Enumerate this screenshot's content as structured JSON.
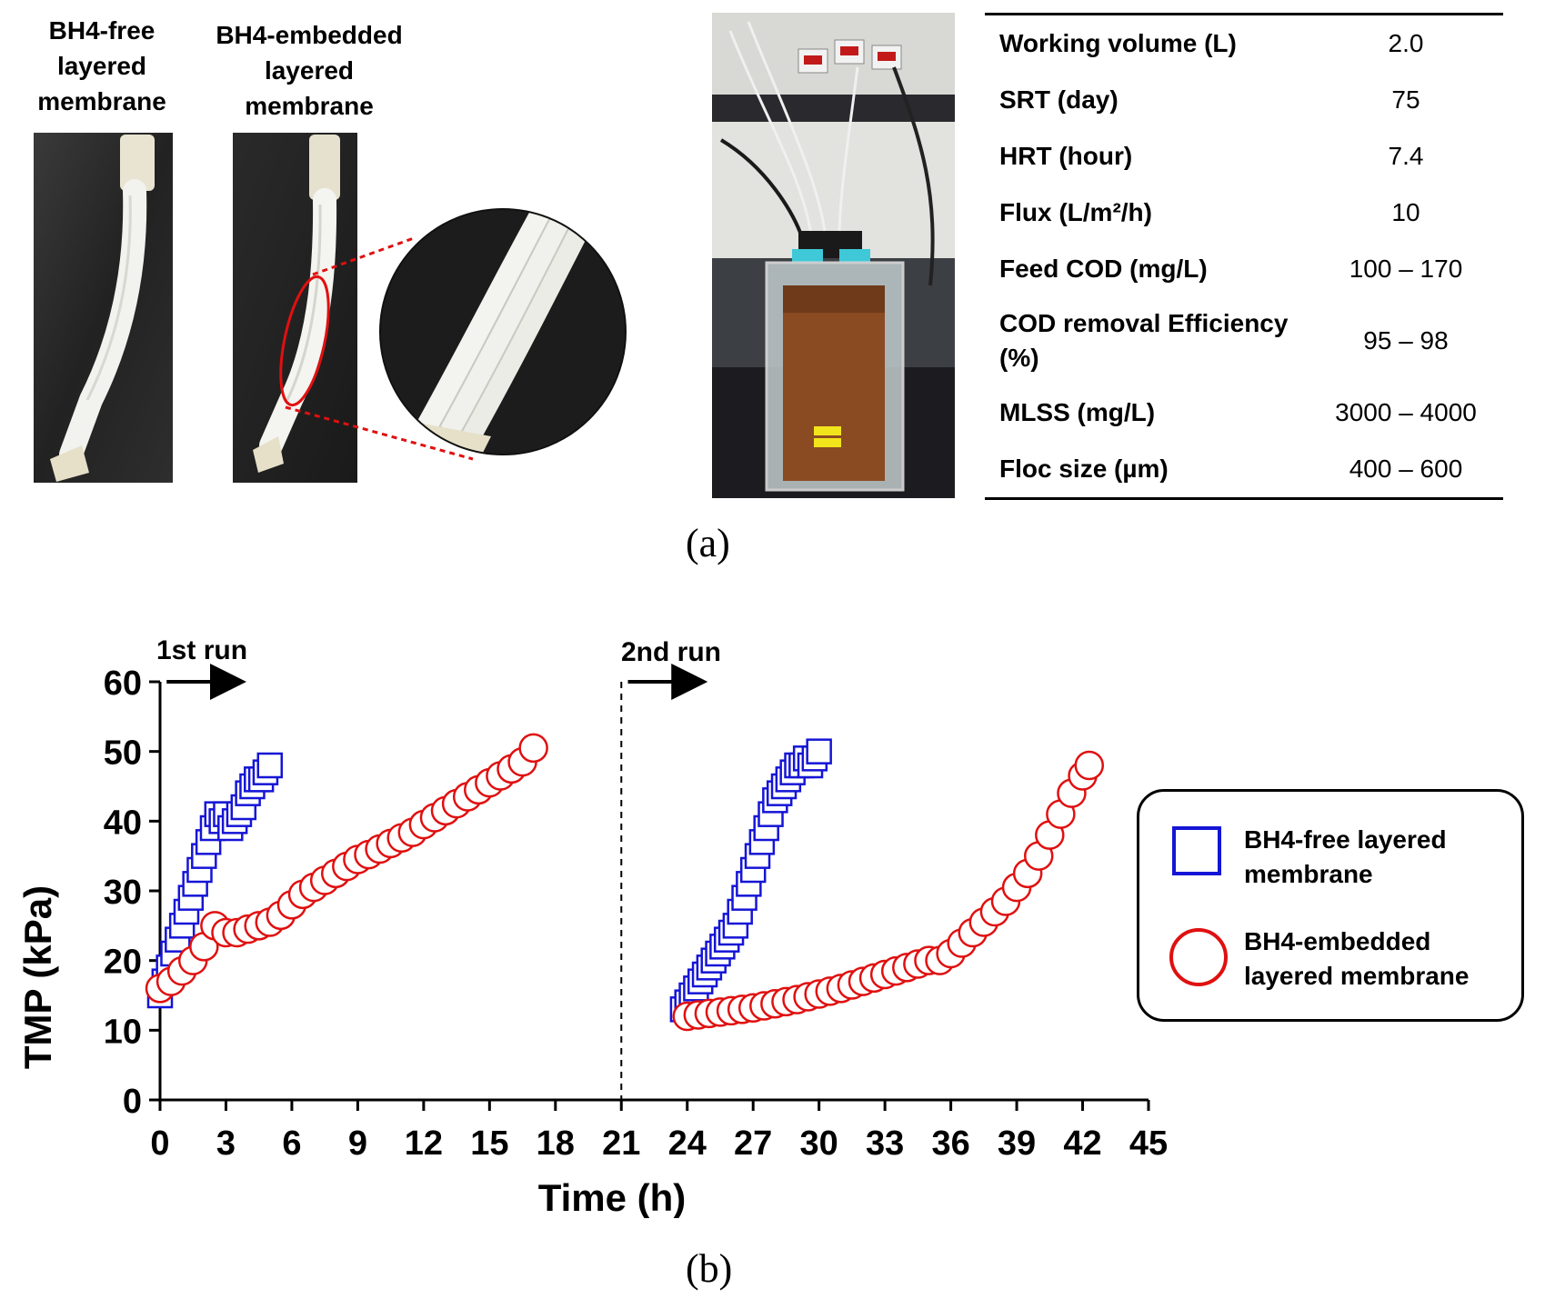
{
  "panel_a": {
    "label": "(a)",
    "photo_labels": {
      "free": [
        "BH4-free",
        "layered",
        "membrane"
      ],
      "embedded": [
        "BH4-embedded",
        "layered",
        "membrane"
      ]
    },
    "properties": [
      {
        "name": "Working volume (L)",
        "value": "2.0"
      },
      {
        "name": "SRT (day)",
        "value": "75"
      },
      {
        "name": "HRT (hour)",
        "value": "7.4"
      },
      {
        "name": "Flux (L/m²/h)",
        "value": "10"
      },
      {
        "name": "Feed COD (mg/L)",
        "value": "100 – 170"
      },
      {
        "name": "COD removal Efficiency (%)",
        "value": "95 – 98"
      },
      {
        "name": "MLSS (mg/L)",
        "value": "3000 – 4000"
      },
      {
        "name": "Floc size (µm)",
        "value": "400 – 600"
      }
    ]
  },
  "panel_b": {
    "label": "(b)",
    "run_labels": [
      "1st run",
      "2nd run"
    ],
    "legend": [
      "BH4-free layered membrane",
      "BH4-embedded layered membrane"
    ]
  },
  "colors": {
    "free": "#1515d6",
    "embedded": "#e01010"
  },
  "chart_data": {
    "type": "scatter",
    "xlabel": "Time (h)",
    "ylabel": "TMP (kPa)",
    "xlim": [
      0,
      45
    ],
    "ylim": [
      0,
      60
    ],
    "xticks": [
      0,
      3,
      6,
      9,
      12,
      15,
      18,
      21,
      24,
      27,
      30,
      33,
      36,
      39,
      42,
      45
    ],
    "yticks": [
      0,
      10,
      20,
      30,
      40,
      50,
      60
    ],
    "divider_x": 21,
    "legend_position": "right",
    "series": [
      {
        "name": "BH4-free layered membrane",
        "marker": "square",
        "x": [
          0,
          0.2,
          0.4,
          0.6,
          0.8,
          1.0,
          1.2,
          1.4,
          1.6,
          1.8,
          2.0,
          2.2,
          2.4,
          2.6,
          2.8,
          3.0,
          3.2,
          3.4,
          3.6,
          3.8,
          4.0,
          4.2,
          4.4,
          4.6,
          4.8,
          5.0,
          23.8,
          24.0,
          24.2,
          24.4,
          24.6,
          24.8,
          25.0,
          25.2,
          25.4,
          25.6,
          25.8,
          26.0,
          26.2,
          26.4,
          26.6,
          26.8,
          27.0,
          27.2,
          27.4,
          27.6,
          27.8,
          28.0,
          28.2,
          28.4,
          28.6,
          28.8,
          29.0,
          29.2,
          29.4,
          29.6,
          29.8,
          30.0
        ],
        "y": [
          15,
          17,
          19,
          21,
          23,
          25,
          27,
          29,
          31,
          33,
          35,
          37,
          39,
          41,
          40,
          41,
          39,
          40,
          41,
          42,
          44,
          45,
          46,
          46,
          47,
          48,
          13,
          14,
          15,
          16,
          17,
          18,
          19,
          20,
          21,
          22,
          23,
          24,
          25,
          27,
          29,
          31,
          33,
          35,
          37,
          39,
          41,
          43,
          44,
          45,
          46,
          47,
          48,
          48,
          49,
          48,
          49,
          50
        ]
      },
      {
        "name": "BH4-embedded layered membrane",
        "marker": "circle",
        "x": [
          0,
          0.5,
          1.0,
          1.5,
          2.0,
          2.5,
          3.0,
          3.5,
          4.0,
          4.5,
          5.0,
          5.5,
          6.0,
          6.5,
          7.0,
          7.5,
          8.0,
          8.5,
          9.0,
          9.5,
          10.0,
          10.5,
          11.0,
          11.5,
          12.0,
          12.5,
          13.0,
          13.5,
          14.0,
          14.5,
          15.0,
          15.5,
          16.0,
          16.5,
          17.0,
          24.0,
          24.5,
          25.0,
          25.5,
          26.0,
          26.5,
          27.0,
          27.5,
          28.0,
          28.5,
          29.0,
          29.5,
          30.0,
          30.5,
          31.0,
          31.5,
          32.0,
          32.5,
          33.0,
          33.5,
          34.0,
          34.5,
          35.0,
          35.5,
          36.0,
          36.5,
          37.0,
          37.5,
          38.0,
          38.5,
          39.0,
          39.5,
          40.0,
          40.5,
          41.0,
          41.5,
          42.0,
          42.3
        ],
        "y": [
          16,
          17,
          18.5,
          20,
          22,
          25,
          24,
          24,
          24.5,
          25,
          25.5,
          26.5,
          28,
          29.5,
          30.5,
          31.5,
          32.5,
          33.5,
          34.5,
          35.2,
          36,
          36.8,
          37.6,
          38.4,
          39.5,
          40.5,
          41.5,
          42.5,
          43.5,
          44.5,
          45.5,
          46.5,
          47.5,
          48.5,
          50.5,
          12,
          12.2,
          12.4,
          12.6,
          12.8,
          13,
          13.2,
          13.5,
          13.8,
          14.1,
          14.4,
          14.8,
          15.2,
          15.6,
          16,
          16.5,
          17,
          17.5,
          18,
          18.5,
          19,
          19.5,
          20,
          20,
          21,
          22.5,
          24,
          25.5,
          27,
          28.5,
          30.5,
          32.5,
          35,
          38,
          41,
          44,
          46.5,
          48
        ]
      }
    ]
  }
}
